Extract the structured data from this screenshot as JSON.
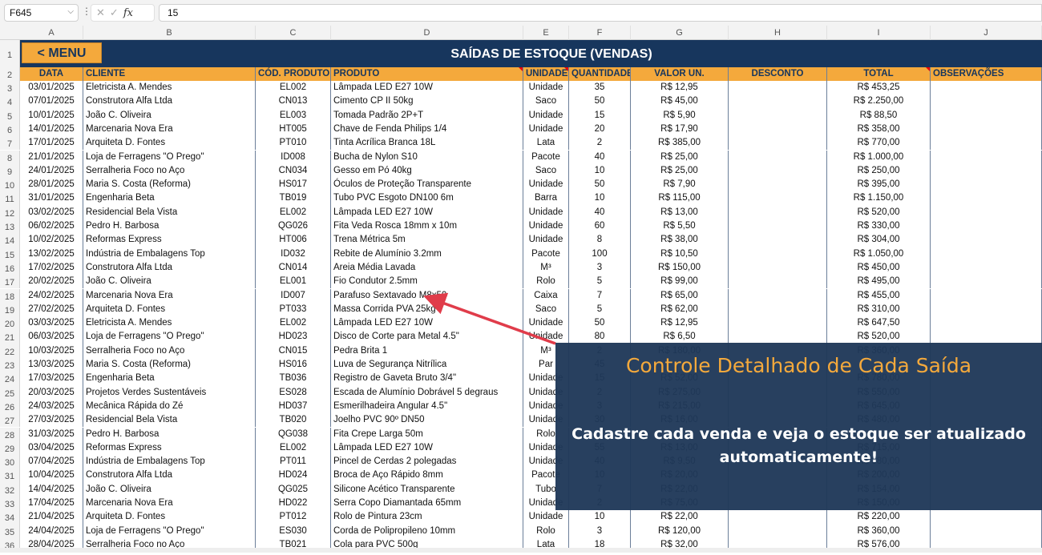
{
  "formula_bar": {
    "name_box": "F645",
    "formula": "15"
  },
  "columns": [
    "A",
    "B",
    "C",
    "D",
    "E",
    "F",
    "G",
    "H",
    "I",
    "J"
  ],
  "sheet": {
    "menu_button": "< MENU",
    "title": "SAÍDAS DE ESTOQUE (VENDAS)",
    "headers": [
      "DATA",
      "CLIENTE",
      "CÓD. PRODUTO",
      "PRODUTO",
      "UNIDADE",
      "QUANTIDADE",
      "VALOR UN.",
      "DESCONTO",
      "TOTAL",
      "OBSERVAÇÕES"
    ],
    "rows": [
      [
        "03/01/2025",
        "Eletricista A. Mendes",
        "EL002",
        "Lâmpada LED E27 10W",
        "Unidade",
        "35",
        "R$ 12,95",
        "",
        "R$ 453,25",
        ""
      ],
      [
        "07/01/2025",
        "Construtora Alfa Ltda",
        "CN013",
        "Cimento CP II 50kg",
        "Saco",
        "50",
        "R$ 45,00",
        "",
        "R$ 2.250,00",
        ""
      ],
      [
        "10/01/2025",
        "João C. Oliveira",
        "EL003",
        "Tomada Padrão 2P+T",
        "Unidade",
        "15",
        "R$ 5,90",
        "",
        "R$ 88,50",
        ""
      ],
      [
        "14/01/2025",
        "Marcenaria Nova Era",
        "HT005",
        "Chave de Fenda Philips 1/4",
        "Unidade",
        "20",
        "R$ 17,90",
        "",
        "R$ 358,00",
        ""
      ],
      [
        "17/01/2025",
        "Arquiteta D. Fontes",
        "PT010",
        "Tinta Acrílica Branca 18L",
        "Lata",
        "2",
        "R$ 385,00",
        "",
        "R$ 770,00",
        ""
      ],
      [
        "21/01/2025",
        "Loja de Ferragens \"O Prego\"",
        "ID008",
        "Bucha de Nylon S10",
        "Pacote",
        "40",
        "R$ 25,00",
        "",
        "R$ 1.000,00",
        ""
      ],
      [
        "24/01/2025",
        "Serralheria Foco no Aço",
        "CN034",
        "Gesso em Pó 40kg",
        "Saco",
        "10",
        "R$ 25,00",
        "",
        "R$ 250,00",
        ""
      ],
      [
        "28/01/2025",
        "Maria S. Costa (Reforma)",
        "HS017",
        "Óculos de Proteção Transparente",
        "Unidade",
        "50",
        "R$ 7,90",
        "",
        "R$ 395,00",
        ""
      ],
      [
        "31/01/2025",
        "Engenharia Beta",
        "TB019",
        "Tubo PVC Esgoto DN100 6m",
        "Barra",
        "10",
        "R$ 115,00",
        "",
        "R$ 1.150,00",
        ""
      ],
      [
        "03/02/2025",
        "Residencial Bela Vista",
        "EL002",
        "Lâmpada LED E27 10W",
        "Unidade",
        "40",
        "R$ 13,00",
        "",
        "R$ 520,00",
        ""
      ],
      [
        "06/02/2025",
        "Pedro H. Barbosa",
        "QG026",
        "Fita Veda Rosca 18mm x 10m",
        "Unidade",
        "60",
        "R$ 5,50",
        "",
        "R$ 330,00",
        ""
      ],
      [
        "10/02/2025",
        "Reformas Express",
        "HT006",
        "Trena Métrica 5m",
        "Unidade",
        "8",
        "R$ 38,00",
        "",
        "R$ 304,00",
        ""
      ],
      [
        "13/02/2025",
        "Indústria de Embalagens Top",
        "ID032",
        "Rebite de Alumínio 3.2mm",
        "Pacote",
        "100",
        "R$ 10,50",
        "",
        "R$ 1.050,00",
        ""
      ],
      [
        "17/02/2025",
        "Construtora Alfa Ltda",
        "CN014",
        "Areia Média Lavada",
        "M³",
        "3",
        "R$ 150,00",
        "",
        "R$ 450,00",
        ""
      ],
      [
        "20/02/2025",
        "João C. Oliveira",
        "EL001",
        "Fio Condutor 2.5mm",
        "Rolo",
        "5",
        "R$ 99,00",
        "",
        "R$ 495,00",
        ""
      ],
      [
        "24/02/2025",
        "Marcenaria Nova Era",
        "ID007",
        "Parafuso Sextavado M8x50",
        "Caixa",
        "7",
        "R$ 65,00",
        "",
        "R$ 455,00",
        ""
      ],
      [
        "27/02/2025",
        "Arquiteta D. Fontes",
        "PT033",
        "Massa Corrida PVA 25kg",
        "Saco",
        "5",
        "R$ 62,00",
        "",
        "R$ 310,00",
        ""
      ],
      [
        "03/03/2025",
        "Eletricista A. Mendes",
        "EL002",
        "Lâmpada LED E27 10W",
        "Unidade",
        "50",
        "R$ 12,95",
        "",
        "R$ 647,50",
        ""
      ],
      [
        "06/03/2025",
        "Loja de Ferragens \"O Prego\"",
        "HD023",
        "Disco de Corte para Metal 4.5\"",
        "Unidade",
        "80",
        "R$ 6,50",
        "",
        "R$ 520,00",
        ""
      ],
      [
        "10/03/2025",
        "Serralheria Foco no Aço",
        "CN015",
        "Pedra Brita 1",
        "M³",
        "2",
        "R$ 180,00",
        "",
        "R$ 360,00",
        ""
      ],
      [
        "13/03/2025",
        "Maria S. Costa (Reforma)",
        "HS016",
        "Luva de Segurança Nitrílica",
        "Par",
        "45",
        "",
        "",
        "",
        ""
      ],
      [
        "17/03/2025",
        "Engenharia Beta",
        "TB036",
        "Registro de Gaveta Bruto 3/4\"",
        "Unidade",
        "15",
        "R$ 52,00",
        "",
        "R$ 780,00",
        ""
      ],
      [
        "20/03/2025",
        "Projetos Verdes Sustentáveis",
        "ES028",
        "Escada de Alumínio Dobrável 5 degraus",
        "Unidade",
        "2",
        "R$ 275,00",
        "",
        "R$ 550,00",
        ""
      ],
      [
        "24/03/2025",
        "Mecânica Rápida do Zé",
        "HD037",
        "Esmerilhadeira Angular 4.5\"",
        "Unidade",
        "3",
        "R$ 215,00",
        "",
        "R$ 645,00",
        ""
      ],
      [
        "27/03/2025",
        "Residencial Bela Vista",
        "TB020",
        "Joelho PVC 90º DN50",
        "Unidade",
        "30",
        "R$ 16,00",
        "",
        "R$ 480,00",
        ""
      ],
      [
        "31/03/2025",
        "Pedro H. Barbosa",
        "QG038",
        "Fita Crepe Larga 50m",
        "Rolo",
        "",
        "",
        "",
        "",
        ""
      ],
      [
        "03/04/2025",
        "Reformas Express",
        "EL002",
        "Lâmpada LED E27 10W",
        "Unidade",
        "55",
        "R$ 13,00",
        "",
        "R$ 715,00",
        ""
      ],
      [
        "07/04/2025",
        "Indústria de Embalagens Top",
        "PT011",
        "Pincel de Cerdas 2 polegadas",
        "Unidade",
        "40",
        "R$ 9,50",
        "",
        "R$ 380,00",
        ""
      ],
      [
        "10/04/2025",
        "Construtora Alfa Ltda",
        "HD024",
        "Broca de Aço Rápido 8mm",
        "Pacote",
        "10",
        "R$ 20,00",
        "",
        "R$ 200,00",
        ""
      ],
      [
        "14/04/2025",
        "João C. Oliveira",
        "QG025",
        "Silicone Acético Transparente",
        "Tubo",
        "7",
        "R$ 22,00",
        "",
        "R$ 154,00",
        ""
      ],
      [
        "17/04/2025",
        "Marcenaria Nova Era",
        "HD022",
        "Serra Copo Diamantada 65mm",
        "Unidade",
        "2",
        "R$ 75,00",
        "",
        "R$ 150,00",
        ""
      ],
      [
        "21/04/2025",
        "Arquiteta D. Fontes",
        "PT012",
        "Rolo de Pintura 23cm",
        "Unidade",
        "10",
        "R$ 22,00",
        "",
        "R$ 220,00",
        ""
      ],
      [
        "24/04/2025",
        "Loja de Ferragens \"O Prego\"",
        "ES030",
        "Corda de Polipropileno 10mm",
        "Rolo",
        "3",
        "R$ 120,00",
        "",
        "R$ 360,00",
        ""
      ],
      [
        "28/04/2025",
        "Serralheria Foco no Aço",
        "TB021",
        "Cola para PVC 500g",
        "Lata",
        "18",
        "R$ 32,00",
        "",
        "R$ 576,00",
        ""
      ]
    ]
  },
  "callout": {
    "title": "Controle Detalhado de Cada Saída",
    "subtitle": "Cadastre cada venda e veja o estoque ser atualizado automaticamente!"
  },
  "colors": {
    "navy": "#17365d",
    "orange": "#f4a93c",
    "arrow": "#e03c4a"
  }
}
